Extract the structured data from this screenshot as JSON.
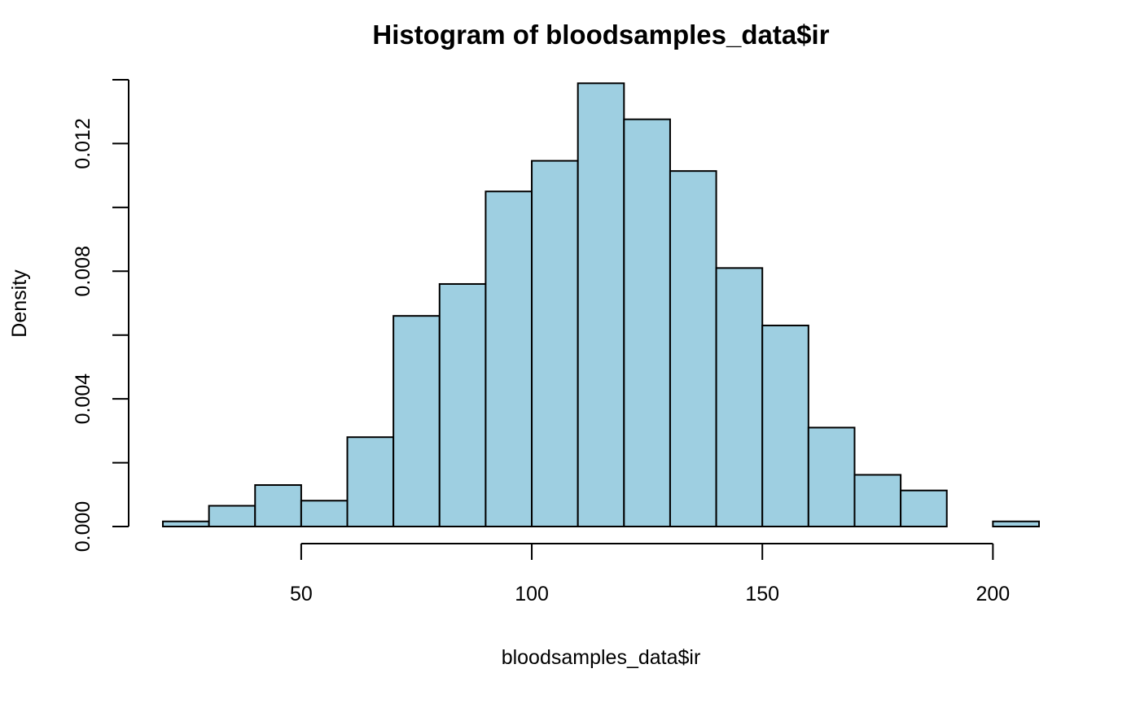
{
  "chart_data": {
    "type": "bar",
    "title": "Histogram of bloodsamples_data$ir",
    "xlabel": "bloodsamples_data$ir",
    "ylabel": "Density",
    "bins": [
      {
        "x0": 20,
        "x1": 30,
        "density": 0.00016
      },
      {
        "x0": 30,
        "x1": 40,
        "density": 0.00065
      },
      {
        "x0": 40,
        "x1": 50,
        "density": 0.0013
      },
      {
        "x0": 50,
        "x1": 60,
        "density": 0.00081
      },
      {
        "x0": 60,
        "x1": 70,
        "density": 0.0028
      },
      {
        "x0": 70,
        "x1": 80,
        "density": 0.0066
      },
      {
        "x0": 80,
        "x1": 90,
        "density": 0.0076
      },
      {
        "x0": 90,
        "x1": 100,
        "density": 0.0105
      },
      {
        "x0": 100,
        "x1": 110,
        "density": 0.01146
      },
      {
        "x0": 110,
        "x1": 120,
        "density": 0.01389
      },
      {
        "x0": 120,
        "x1": 130,
        "density": 0.01276
      },
      {
        "x0": 130,
        "x1": 140,
        "density": 0.01114
      },
      {
        "x0": 140,
        "x1": 150,
        "density": 0.0081
      },
      {
        "x0": 150,
        "x1": 160,
        "density": 0.0063
      },
      {
        "x0": 160,
        "x1": 170,
        "density": 0.0031
      },
      {
        "x0": 170,
        "x1": 180,
        "density": 0.00162
      },
      {
        "x0": 180,
        "x1": 190,
        "density": 0.00113
      },
      {
        "x0": 190,
        "x1": 200,
        "density": 0
      },
      {
        "x0": 200,
        "x1": 210,
        "density": 0.00016
      }
    ],
    "xlim": [
      20,
      210
    ],
    "ylim": [
      0,
      0.014
    ],
    "x_ticks": [
      50,
      100,
      150,
      200
    ],
    "x_tick_labels": [
      "50",
      "100",
      "150",
      "200"
    ],
    "y_ticks": [
      0,
      0.002,
      0.004,
      0.006,
      0.008,
      0.01,
      0.012,
      0.014
    ],
    "y_tick_labels": [
      "0.000",
      "",
      "0.004",
      "",
      "0.008",
      "",
      "0.012",
      ""
    ],
    "bar_color": "#9ecfe1",
    "bar_border_color": "#000000",
    "grid": false
  }
}
